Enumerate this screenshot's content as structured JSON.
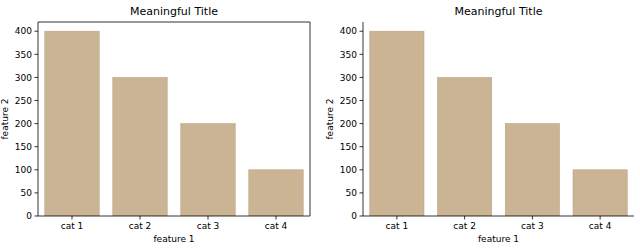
{
  "chart_data": [
    {
      "type": "bar",
      "title": "Meaningful Title",
      "x_label": "feature 1",
      "y_label": "feature 2",
      "categories": [
        "cat 1",
        "cat 2",
        "cat 3",
        "cat 4"
      ],
      "values": [
        400,
        300,
        200,
        100
      ],
      "color": "#cbb494",
      "ylim": [
        0,
        420
      ],
      "yticks": [
        0,
        50,
        100,
        150,
        200,
        250,
        300,
        350,
        400
      ],
      "grid": false
    },
    {
      "type": "bar",
      "title": "Meaningful Title",
      "x_label": "feature 1",
      "y_label": "feature 2",
      "categories": [
        "cat 1",
        "cat 2",
        "cat 3",
        "cat 4"
      ],
      "values": [
        400,
        300,
        200,
        100
      ],
      "color": "#cbb494",
      "ylim": [
        0,
        420
      ],
      "yticks": [
        0,
        50,
        100,
        150,
        200,
        250,
        300,
        350,
        400
      ],
      "grid": false
    }
  ]
}
